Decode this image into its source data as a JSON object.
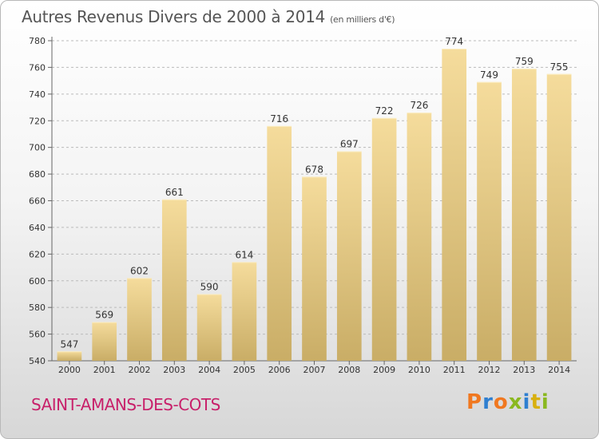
{
  "title": "Autres Revenus Divers de 2000 à 2014",
  "subtitle": "(en milliers d'€)",
  "place": "SAINT-AMANS-DES-COTS",
  "logo": {
    "letters": [
      "P",
      "r",
      "o",
      "x",
      "i",
      "t",
      "i"
    ],
    "colors": [
      "#f07820",
      "#2f7fd0",
      "#f07820",
      "#8ab820",
      "#2f7fd0",
      "#d8b010",
      "#8ab820"
    ]
  },
  "colors": {
    "bar_light": "#f5dc9c",
    "bar_dark": "#c9ad66",
    "grid": "#bbbbbb",
    "place": "#c8206a"
  },
  "chart_data": {
    "type": "bar",
    "title": "Autres Revenus Divers de 2000 à 2014",
    "subtitle": "(en milliers d'€)",
    "categories": [
      "2000",
      "2001",
      "2002",
      "2003",
      "2004",
      "2005",
      "2006",
      "2007",
      "2008",
      "2009",
      "2010",
      "2011",
      "2012",
      "2013",
      "2014"
    ],
    "values": [
      547,
      569,
      602,
      661,
      590,
      614,
      716,
      678,
      697,
      722,
      726,
      774,
      749,
      759,
      755
    ],
    "ylim": [
      540,
      780
    ],
    "yticks": [
      540,
      560,
      580,
      600,
      620,
      640,
      660,
      680,
      700,
      720,
      740,
      760,
      780
    ],
    "grid": true,
    "xlabel": "",
    "ylabel": ""
  }
}
